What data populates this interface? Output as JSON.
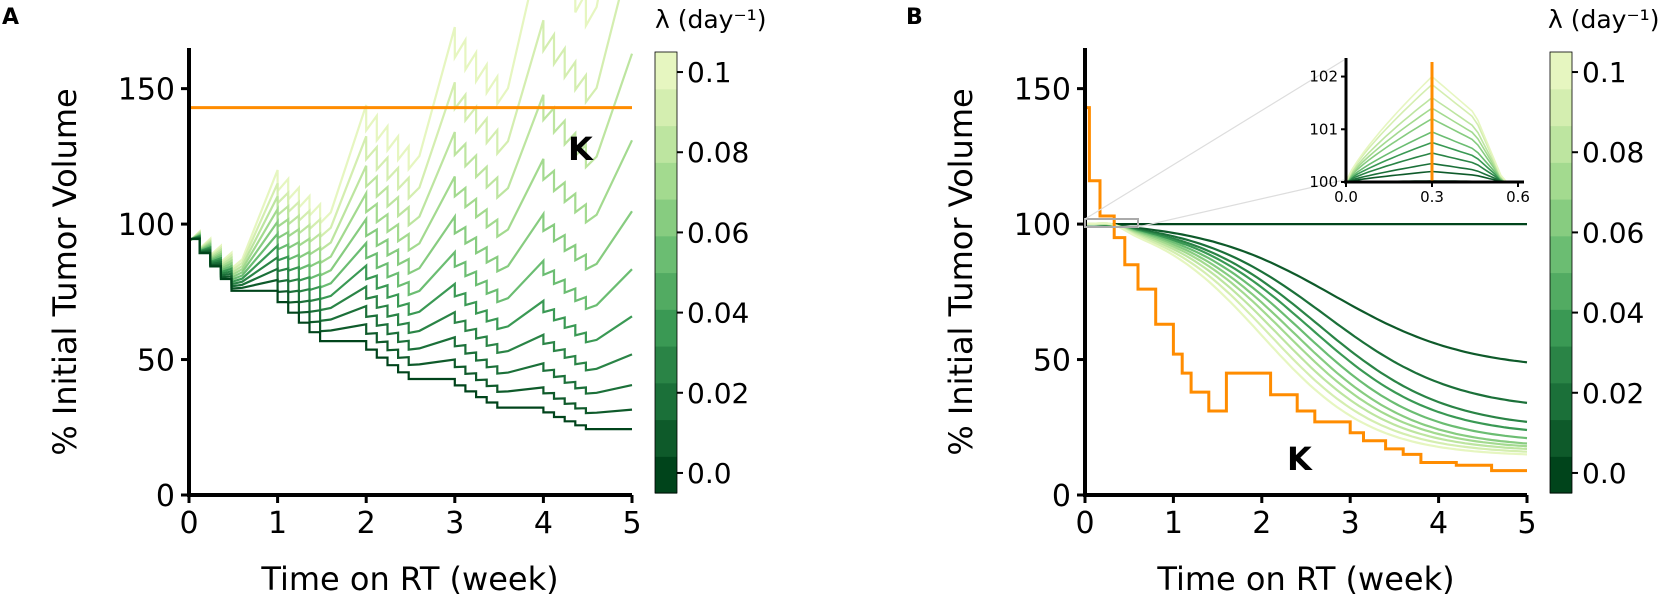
{
  "colors": {
    "carrying_capacity": "#ff8c00",
    "greens": [
      "#00441b",
      "#0e5a2a",
      "#1b7039",
      "#2a8446",
      "#3a9954",
      "#52ab62",
      "#6bbd72",
      "#87cc80",
      "#a3da8f",
      "#bde5a0",
      "#d4eeb0",
      "#e6f6c0"
    ]
  },
  "chart_data": [
    {
      "panel": "A",
      "type": "line",
      "xlabel": "Time on RT (week)",
      "ylabel": "% Initial Tumor Volume",
      "xlim": [
        0,
        5
      ],
      "ylim": [
        0,
        165
      ],
      "xticks": [
        "0",
        "1",
        "2",
        "3",
        "4",
        "5"
      ],
      "yticks": [
        "0",
        "50",
        "100",
        "150"
      ],
      "K_label": "K",
      "K_value": 143,
      "lambda_values": [
        0.0,
        0.01,
        0.02,
        0.03,
        0.04,
        0.05,
        0.06,
        0.07,
        0.08,
        0.09,
        0.1
      ],
      "treatment_start_value": 100,
      "min_level_end": 1,
      "max_level_end": 30,
      "colorbar": {
        "title": "λ (day⁻¹)",
        "ticks": [
          "0.0",
          "0.02",
          "0.04",
          "0.06",
          "0.08",
          "0.1"
        ],
        "range": [
          -0.005,
          0.105
        ]
      }
    },
    {
      "panel": "B",
      "type": "line",
      "xlabel": "Time on RT (week)",
      "ylabel": "% Initial Tumor Volume",
      "xlim": [
        0,
        5
      ],
      "ylim": [
        0,
        165
      ],
      "xticks": [
        "0",
        "1",
        "2",
        "3",
        "4",
        "5"
      ],
      "yticks": [
        "0",
        "50",
        "100",
        "150"
      ],
      "K_label": "K",
      "K_steps": [
        [
          0,
          143
        ],
        [
          0.05,
          116
        ],
        [
          0.17,
          103
        ],
        [
          0.33,
          95
        ],
        [
          0.45,
          85
        ],
        [
          0.6,
          76
        ],
        [
          0.8,
          63
        ],
        [
          1.0,
          52
        ],
        [
          1.1,
          45
        ],
        [
          1.2,
          38
        ],
        [
          1.4,
          31
        ],
        [
          1.6,
          45
        ],
        [
          1.7,
          45
        ],
        [
          2.0,
          45
        ],
        [
          2.1,
          37
        ],
        [
          2.4,
          35
        ],
        [
          2.4,
          31
        ],
        [
          2.6,
          27
        ],
        [
          2.7,
          27
        ],
        [
          3.0,
          23
        ],
        [
          3.15,
          20
        ],
        [
          3.4,
          17
        ],
        [
          3.6,
          15
        ],
        [
          3.8,
          12
        ],
        [
          4.2,
          11
        ],
        [
          4.6,
          9
        ],
        [
          5.0,
          9
        ]
      ],
      "end_values": [
        100,
        49,
        34,
        27,
        24,
        21,
        19,
        18,
        17,
        16,
        15
      ],
      "lambda_values": [
        0.0,
        0.01,
        0.02,
        0.03,
        0.04,
        0.05,
        0.06,
        0.07,
        0.08,
        0.09,
        0.1
      ],
      "inset": {
        "xlim": [
          0.0,
          0.6
        ],
        "ylim": [
          100,
          102.2
        ],
        "xticks": [
          "0.0",
          "0.3",
          "0.6"
        ],
        "yticks": [
          "100",
          "101",
          "102"
        ],
        "K_line_x": 0.3,
        "peak_values": [
          100.02,
          100.2,
          100.35,
          100.55,
          100.75,
          100.95,
          101.2,
          101.4,
          101.6,
          101.85,
          102.0
        ]
      },
      "colorbar": {
        "title": "λ (day⁻¹)",
        "ticks": [
          "0.0",
          "0.02",
          "0.04",
          "0.06",
          "0.08",
          "0.1"
        ],
        "range": [
          -0.005,
          0.105
        ]
      }
    }
  ],
  "panel_letters": [
    "A",
    "B"
  ]
}
